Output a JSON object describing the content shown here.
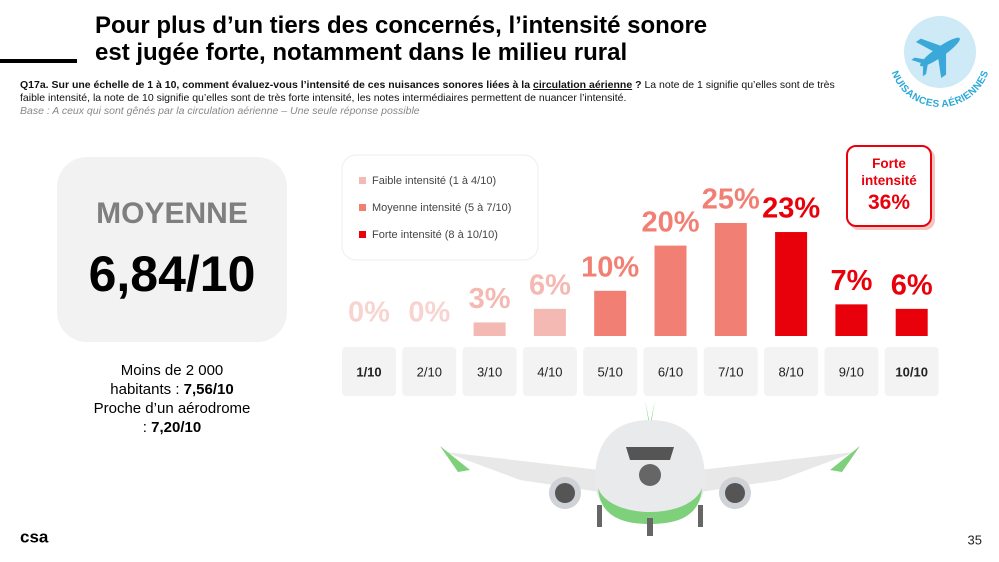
{
  "header": {
    "title_lines": [
      "Pour plus d’un tiers des concernés, l’intensité sonore",
      "est jugée forte, notamment dans le milieu rural"
    ]
  },
  "question": {
    "lead": "Q17a. Sur une échelle de 1 à 10, comment évaluez-vous l’intensité de ces nuisances sonores liées à la",
    "link": "circulation aérienne",
    "mark": "?",
    "detail": "La note de 1 signifie qu’elles sont de très faible intensité, la note de 10 signifie qu’elles sont de très forte intensité, les notes intermédiaires permettent de nuancer l’intensité."
  },
  "base": "Base : A ceux qui sont gênés par la circulation aérienne – Une seule réponse possible",
  "badge": "NUISANCES AÉRIENNES",
  "average": {
    "label": "MOYENNE",
    "value": "6,84/10"
  },
  "notes": [
    {
      "label": "Moins de 2 000 habitants :",
      "value": "7,56/10"
    },
    {
      "label": "Proche d’un aérodrome :",
      "value": "7,20/10"
    }
  ],
  "callout": {
    "label": "Forte intensité",
    "value": "36%"
  },
  "chart_data": {
    "type": "bar",
    "categories": [
      "1/10",
      "2/10",
      "3/10",
      "4/10",
      "5/10",
      "6/10",
      "7/10",
      "8/10",
      "9/10",
      "10/10"
    ],
    "series": [
      {
        "name": "Faible intensité (1 à 4/10)",
        "color": "#f5b9b3",
        "values": [
          0,
          0,
          3,
          6,
          null,
          null,
          null,
          null,
          null,
          null
        ],
        "value_labels": [
          "0%",
          "0%",
          "3%",
          "6%",
          null,
          null,
          null,
          null,
          null,
          null
        ]
      },
      {
        "name": "Moyenne intensité (5 à 7/10)",
        "color": "#f27f73",
        "values": [
          null,
          null,
          null,
          null,
          10,
          20,
          25,
          null,
          null,
          null
        ],
        "value_labels": [
          null,
          null,
          null,
          null,
          "10%",
          "20%",
          "25%",
          null,
          null,
          null
        ]
      },
      {
        "name": "Forte intensité (8 à 10/10)",
        "color": "#e8000b",
        "values": [
          null,
          null,
          null,
          null,
          null,
          null,
          null,
          23,
          7,
          6
        ],
        "value_labels": [
          null,
          null,
          null,
          null,
          null,
          null,
          null,
          "23%",
          "7%",
          "6%"
        ]
      }
    ]
  },
  "page_number": "35",
  "logo": "csa"
}
